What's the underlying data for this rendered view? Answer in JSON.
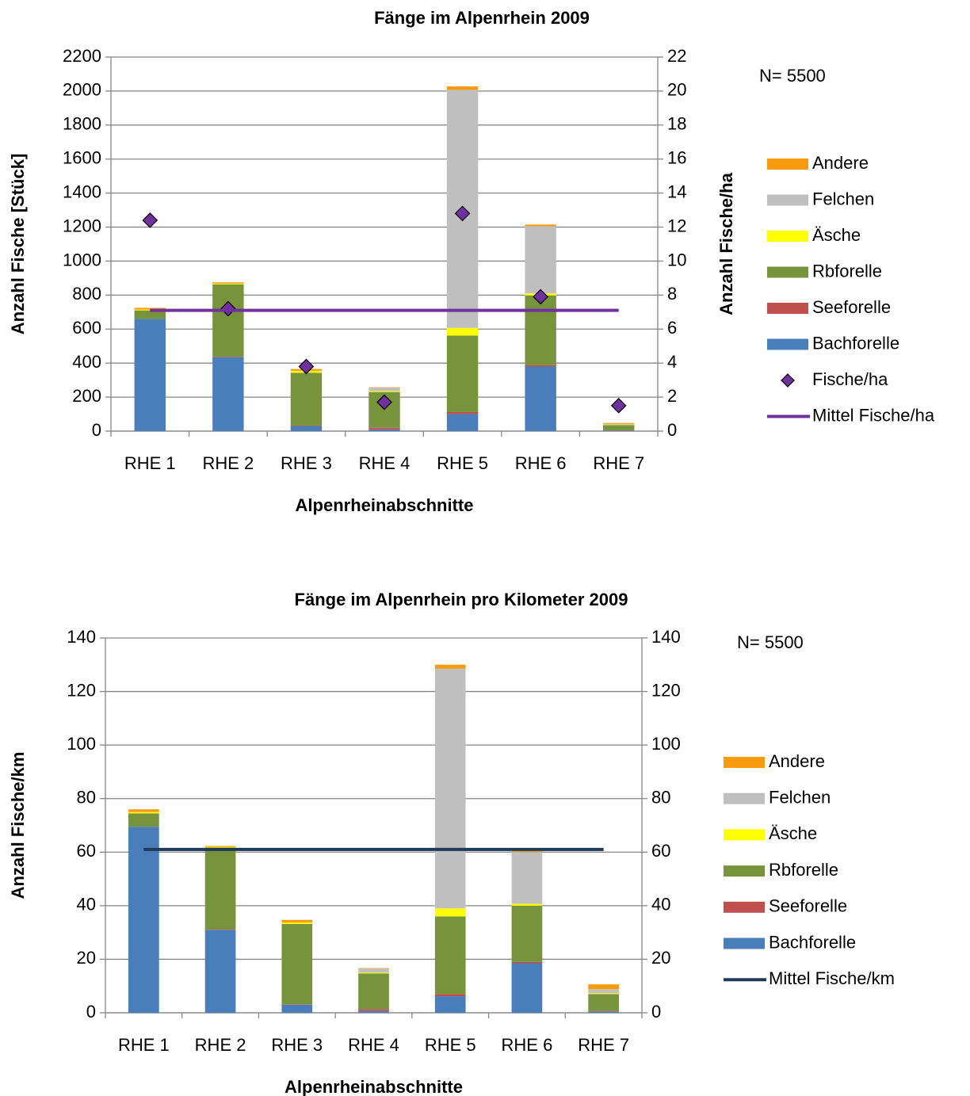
{
  "chart_data": [
    {
      "type": "bar",
      "stacked": true,
      "title": "Fänge im Alpenrhein 2009",
      "x_label": "Alpenrheinabschnitte",
      "y_label": "Anzahl Fische [Stück]",
      "y2_label": "Anzahl Fische/ha",
      "annotation": "N= 5500",
      "categories": [
        "RHE 1",
        "RHE 2",
        "RHE 3",
        "RHE 4",
        "RHE 5",
        "RHE 6",
        "RHE 7"
      ],
      "series": [
        {
          "name": "Bachforelle",
          "type": "bar",
          "color": "#4a7ebb",
          "values": [
            660,
            435,
            30,
            10,
            100,
            380,
            3
          ]
        },
        {
          "name": "Seeforelle",
          "type": "bar",
          "color": "#c0504d",
          "values": [
            0,
            3,
            3,
            10,
            12,
            8,
            2
          ]
        },
        {
          "name": "Rbforelle",
          "type": "bar",
          "color": "#77933c",
          "values": [
            50,
            425,
            310,
            210,
            450,
            410,
            30
          ]
        },
        {
          "name": "Äsche",
          "type": "bar",
          "color": "#ffff00",
          "values": [
            5,
            5,
            12,
            5,
            45,
            12,
            3
          ]
        },
        {
          "name": "Felchen",
          "type": "bar",
          "color": "#bfbfbf",
          "values": [
            0,
            0,
            0,
            20,
            1400,
            395,
            5
          ]
        },
        {
          "name": "Andere",
          "type": "bar",
          "color": "#f79a0e",
          "values": [
            10,
            7,
            10,
            3,
            20,
            10,
            5
          ]
        },
        {
          "name": "Fische/ha",
          "type": "scatter",
          "axis": "y2",
          "color": "#7030a0",
          "values": [
            12.4,
            7.2,
            3.8,
            1.7,
            12.8,
            7.9,
            1.5
          ]
        },
        {
          "name": "Mittel Fische/ha",
          "type": "line",
          "axis": "y2",
          "color": "#7030a0",
          "values": [
            7.1,
            7.1,
            7.1,
            7.1,
            7.1,
            7.1,
            7.1
          ]
        }
      ],
      "ylim": [
        0,
        2200
      ],
      "yticks": [
        0,
        200,
        400,
        600,
        800,
        1000,
        1200,
        1400,
        1600,
        1800,
        2000,
        2200
      ],
      "y2lim": [
        0,
        22
      ],
      "y2ticks": [
        0,
        2,
        4,
        6,
        8,
        10,
        12,
        14,
        16,
        18,
        20,
        22
      ],
      "grid": true
    },
    {
      "type": "bar",
      "stacked": true,
      "title": "Fänge im Alpenrhein pro Kilometer 2009",
      "x_label": "Alpenrheinabschnitte",
      "y_label": "Anzahl Fische/km",
      "annotation": "N= 5500",
      "categories": [
        "RHE 1",
        "RHE 2",
        "RHE 3",
        "RHE 4",
        "RHE 5",
        "RHE 6",
        "RHE 7"
      ],
      "series": [
        {
          "name": "Bachforelle",
          "type": "bar",
          "color": "#4a7ebb",
          "values": [
            69.5,
            31,
            3,
            0.7,
            6.2,
            18.5,
            0.5
          ]
        },
        {
          "name": "Seeforelle",
          "type": "bar",
          "color": "#c0504d",
          "values": [
            0,
            0.2,
            0.2,
            0.7,
            0.8,
            0.5,
            0.2
          ]
        },
        {
          "name": "Rbforelle",
          "type": "bar",
          "color": "#77933c",
          "values": [
            5,
            30.5,
            30,
            13.3,
            29,
            21,
            6.3
          ]
        },
        {
          "name": "Äsche",
          "type": "bar",
          "color": "#ffff00",
          "values": [
            0.5,
            0.3,
            0.5,
            0.3,
            3,
            0.7,
            0.3
          ]
        },
        {
          "name": "Felchen",
          "type": "bar",
          "color": "#bfbfbf",
          "values": [
            0,
            0,
            0,
            1.5,
            89.5,
            19.3,
            1.5
          ]
        },
        {
          "name": "Andere",
          "type": "bar",
          "color": "#f79a0e",
          "values": [
            1,
            0.3,
            1,
            0.2,
            1.5,
            0.4,
            1.8
          ]
        },
        {
          "name": "Mittel Fische/km",
          "type": "line",
          "color": "#1f3a5a",
          "values": [
            61,
            61,
            61,
            61,
            61,
            61,
            61
          ]
        }
      ],
      "ylim": [
        0,
        140
      ],
      "yticks": [
        0,
        20,
        40,
        60,
        80,
        100,
        120,
        140
      ],
      "y2lim": [
        0,
        140
      ],
      "y2ticks": [
        0,
        20,
        40,
        60,
        80,
        100,
        120,
        140
      ],
      "grid": true
    }
  ]
}
